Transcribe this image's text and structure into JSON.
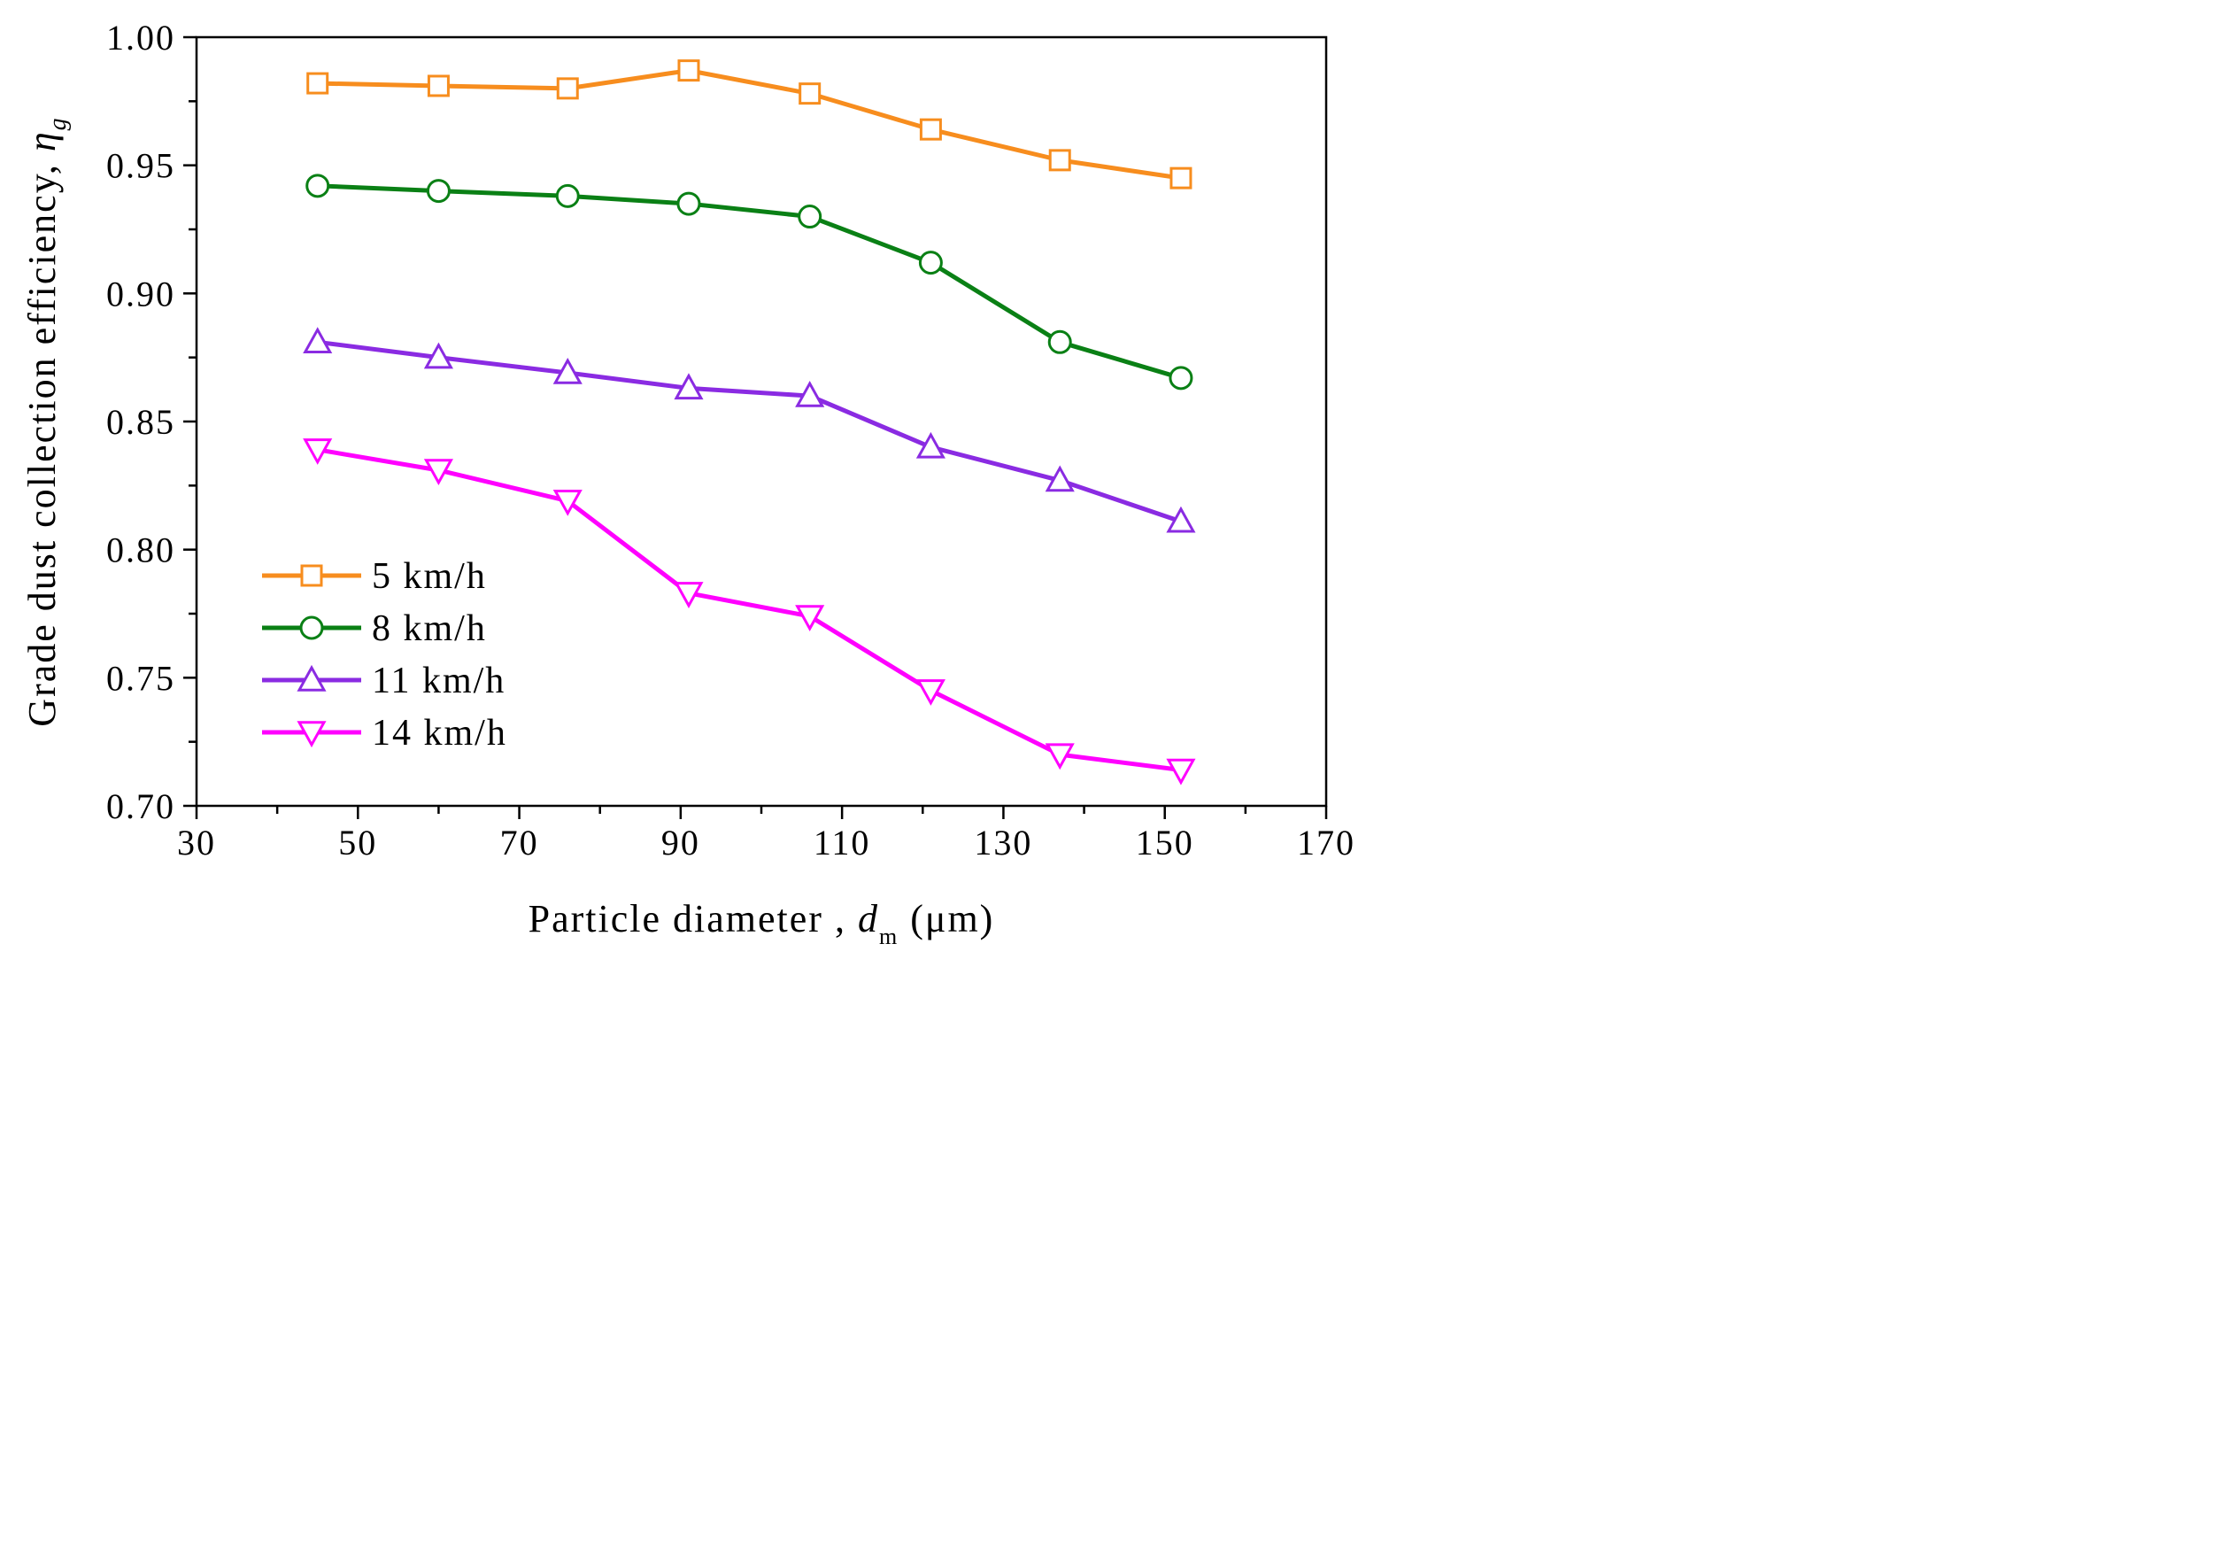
{
  "chart_data": {
    "type": "line",
    "title": "",
    "xlabel": {
      "prefix": "Particle diameter , ",
      "symbol": "d",
      "subscript": "m",
      "unit": " (μm)"
    },
    "ylabel": {
      "prefix": "Grade dust collection efficiency, ",
      "symbol": "η",
      "subscript": "g"
    },
    "xlim": [
      30,
      170
    ],
    "ylim": [
      0.7,
      1.0
    ],
    "xticks": [
      30,
      50,
      70,
      90,
      110,
      130,
      150,
      170
    ],
    "xtick_labels": [
      "30",
      "50",
      "70",
      "90",
      "110",
      "130",
      "150",
      "170"
    ],
    "xminor": [
      40,
      60,
      80,
      100,
      120,
      140,
      160
    ],
    "yticks": [
      0.7,
      0.75,
      0.8,
      0.85,
      0.9,
      0.95,
      1.0
    ],
    "ytick_labels": [
      "0.70",
      "0.75",
      "0.80",
      "0.85",
      "0.90",
      "0.95",
      "1.00"
    ],
    "yminor": [
      0.725,
      0.775,
      0.825,
      0.875,
      0.925,
      0.975
    ],
    "grid": false,
    "legend_position": "bottom-left",
    "x": [
      45,
      60,
      76,
      91,
      106,
      121,
      137,
      152
    ],
    "series": [
      {
        "name": "5 km/h",
        "color": "#F78D1E",
        "marker": "square",
        "values": [
          0.982,
          0.981,
          0.98,
          0.987,
          0.978,
          0.964,
          0.952,
          0.945
        ]
      },
      {
        "name": "8 km/h",
        "color": "#0A8015",
        "marker": "circle",
        "values": [
          0.942,
          0.94,
          0.938,
          0.935,
          0.93,
          0.912,
          0.881,
          0.867
        ]
      },
      {
        "name": "11 km/h",
        "color": "#8A2BE2",
        "marker": "triangle-up",
        "values": [
          0.881,
          0.875,
          0.869,
          0.863,
          0.86,
          0.84,
          0.827,
          0.811
        ]
      },
      {
        "name": "14 km/h",
        "color": "#FF00FF",
        "marker": "triangle-down",
        "values": [
          0.839,
          0.831,
          0.819,
          0.783,
          0.774,
          0.745,
          0.72,
          0.714
        ]
      }
    ]
  }
}
